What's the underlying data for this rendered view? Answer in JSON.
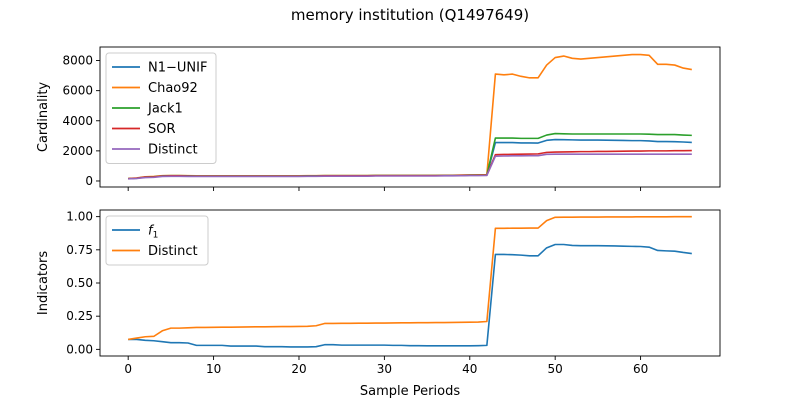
{
  "figure_title": "memory institution (Q1497649)",
  "chart_data": [
    {
      "type": "line",
      "title": "",
      "xlabel": "",
      "ylabel": "Cardinality",
      "xlim": [
        -3.3,
        69.3
      ],
      "ylim": [
        -400,
        8900
      ],
      "xticks": [
        0,
        10,
        20,
        30,
        40,
        50,
        60
      ],
      "yticks": [
        0,
        2000,
        4000,
        6000,
        8000
      ],
      "ytick_labels": [
        "0",
        "2000",
        "4000",
        "6000",
        "8000"
      ],
      "grid": false,
      "legend_position": "upper left",
      "x": [
        0,
        1,
        2,
        3,
        4,
        5,
        6,
        7,
        8,
        9,
        10,
        11,
        12,
        13,
        14,
        15,
        16,
        17,
        18,
        19,
        20,
        21,
        22,
        23,
        24,
        25,
        26,
        27,
        28,
        29,
        30,
        31,
        32,
        33,
        34,
        35,
        36,
        37,
        38,
        39,
        40,
        41,
        42,
        43,
        44,
        45,
        46,
        47,
        48,
        49,
        50,
        51,
        52,
        53,
        54,
        55,
        56,
        57,
        58,
        59,
        60,
        61,
        62,
        63,
        64,
        65,
        66
      ],
      "series": [
        {
          "name": "N1−UNIF",
          "color": "#1f77b4",
          "values": [
            150,
            180,
            250,
            260,
            330,
            340,
            340,
            330,
            320,
            320,
            320,
            320,
            320,
            320,
            320,
            320,
            320,
            320,
            320,
            320,
            320,
            330,
            330,
            340,
            340,
            340,
            340,
            340,
            340,
            350,
            350,
            350,
            350,
            350,
            350,
            350,
            350,
            360,
            360,
            370,
            380,
            380,
            380,
            2550,
            2550,
            2550,
            2530,
            2530,
            2520,
            2700,
            2750,
            2740,
            2730,
            2720,
            2720,
            2720,
            2710,
            2700,
            2690,
            2680,
            2680,
            2660,
            2620,
            2620,
            2610,
            2590,
            2560
          ]
        },
        {
          "name": "Chao92",
          "color": "#ff7f0e",
          "values": [
            160,
            200,
            280,
            300,
            350,
            360,
            360,
            350,
            340,
            340,
            340,
            340,
            340,
            340,
            340,
            340,
            340,
            340,
            340,
            340,
            340,
            350,
            350,
            360,
            360,
            360,
            360,
            360,
            360,
            370,
            370,
            370,
            370,
            370,
            370,
            370,
            370,
            380,
            380,
            390,
            400,
            410,
            420,
            7100,
            7050,
            7100,
            6950,
            6850,
            6850,
            7700,
            8200,
            8300,
            8150,
            8100,
            8150,
            8200,
            8250,
            8300,
            8350,
            8400,
            8400,
            8350,
            7750,
            7750,
            7700,
            7500,
            7400
          ]
        },
        {
          "name": "Jack1",
          "color": "#2ca02c",
          "values": [
            150,
            190,
            260,
            280,
            340,
            350,
            350,
            340,
            330,
            330,
            330,
            330,
            330,
            330,
            330,
            330,
            330,
            330,
            330,
            330,
            330,
            340,
            340,
            350,
            350,
            350,
            350,
            350,
            350,
            360,
            360,
            360,
            360,
            360,
            360,
            360,
            360,
            370,
            370,
            380,
            390,
            390,
            400,
            2850,
            2850,
            2850,
            2830,
            2830,
            2830,
            3050,
            3150,
            3130,
            3120,
            3120,
            3120,
            3120,
            3120,
            3120,
            3120,
            3120,
            3120,
            3110,
            3080,
            3080,
            3080,
            3050,
            3030
          ]
        },
        {
          "name": "SOR",
          "color": "#d62728",
          "values": [
            150,
            190,
            260,
            270,
            330,
            340,
            340,
            330,
            320,
            320,
            320,
            320,
            320,
            320,
            320,
            320,
            320,
            320,
            320,
            320,
            320,
            330,
            330,
            340,
            340,
            340,
            340,
            340,
            340,
            350,
            350,
            350,
            350,
            350,
            350,
            350,
            350,
            360,
            360,
            370,
            380,
            380,
            390,
            1750,
            1760,
            1770,
            1780,
            1790,
            1800,
            1900,
            1920,
            1930,
            1940,
            1950,
            1950,
            1960,
            1960,
            1970,
            1980,
            1990,
            1990,
            2000,
            2000,
            2000,
            2010,
            2010,
            2020
          ]
        },
        {
          "name": "Distinct",
          "color": "#9467bd",
          "values": [
            140,
            170,
            230,
            240,
            300,
            310,
            310,
            300,
            300,
            300,
            300,
            300,
            300,
            300,
            300,
            300,
            300,
            300,
            300,
            300,
            300,
            310,
            310,
            320,
            320,
            320,
            320,
            320,
            320,
            330,
            330,
            330,
            330,
            330,
            330,
            330,
            330,
            340,
            340,
            350,
            360,
            360,
            370,
            1650,
            1660,
            1670,
            1670,
            1680,
            1680,
            1770,
            1780,
            1780,
            1780,
            1780,
            1780,
            1780,
            1780,
            1780,
            1780,
            1780,
            1780,
            1780,
            1780,
            1780,
            1780,
            1780,
            1780
          ]
        }
      ]
    },
    {
      "type": "line",
      "title": "",
      "xlabel": "Sample Periods",
      "ylabel": "Indicators",
      "xlim": [
        -3.3,
        69.3
      ],
      "ylim": [
        -0.05,
        1.05
      ],
      "xticks": [
        0,
        10,
        20,
        30,
        40,
        50,
        60
      ],
      "yticks": [
        0,
        0.25,
        0.5,
        0.75,
        1.0
      ],
      "ytick_labels": [
        "0.00",
        "0.25",
        "0.50",
        "0.75",
        "1.00"
      ],
      "grid": false,
      "legend_position": "upper left",
      "x": [
        0,
        1,
        2,
        3,
        4,
        5,
        6,
        7,
        8,
        9,
        10,
        11,
        12,
        13,
        14,
        15,
        16,
        17,
        18,
        19,
        20,
        21,
        22,
        23,
        24,
        25,
        26,
        27,
        28,
        29,
        30,
        31,
        32,
        33,
        34,
        35,
        36,
        37,
        38,
        39,
        40,
        41,
        42,
        43,
        44,
        45,
        46,
        47,
        48,
        49,
        50,
        51,
        52,
        53,
        54,
        55,
        56,
        57,
        58,
        59,
        60,
        61,
        62,
        63,
        64,
        65,
        66
      ],
      "series": [
        {
          "name": "f1",
          "label_main": "f",
          "label_sub": "1",
          "color": "#1f77b4",
          "values": [
            0.075,
            0.075,
            0.068,
            0.065,
            0.058,
            0.05,
            0.05,
            0.048,
            0.03,
            0.03,
            0.03,
            0.03,
            0.025,
            0.025,
            0.025,
            0.025,
            0.02,
            0.02,
            0.02,
            0.018,
            0.018,
            0.018,
            0.02,
            0.035,
            0.035,
            0.032,
            0.032,
            0.032,
            0.032,
            0.032,
            0.032,
            0.03,
            0.03,
            0.028,
            0.028,
            0.027,
            0.027,
            0.027,
            0.027,
            0.027,
            0.027,
            0.028,
            0.03,
            0.715,
            0.715,
            0.713,
            0.71,
            0.705,
            0.705,
            0.765,
            0.79,
            0.79,
            0.783,
            0.781,
            0.781,
            0.781,
            0.78,
            0.779,
            0.777,
            0.776,
            0.775,
            0.77,
            0.745,
            0.742,
            0.74,
            0.73,
            0.722
          ]
        },
        {
          "name": "Distinct",
          "color": "#ff7f0e",
          "values": [
            0.075,
            0.085,
            0.095,
            0.098,
            0.14,
            0.16,
            0.16,
            0.162,
            0.165,
            0.165,
            0.166,
            0.167,
            0.167,
            0.168,
            0.169,
            0.17,
            0.17,
            0.171,
            0.172,
            0.172,
            0.173,
            0.174,
            0.178,
            0.195,
            0.195,
            0.196,
            0.196,
            0.197,
            0.197,
            0.198,
            0.198,
            0.199,
            0.2,
            0.2,
            0.201,
            0.201,
            0.202,
            0.202,
            0.203,
            0.204,
            0.205,
            0.206,
            0.21,
            0.912,
            0.912,
            0.913,
            0.913,
            0.914,
            0.914,
            0.97,
            0.995,
            0.996,
            0.996,
            0.997,
            0.997,
            0.997,
            0.998,
            0.998,
            0.998,
            0.998,
            0.999,
            0.999,
            0.999,
            0.999,
            1.0,
            1.0,
            1.0
          ]
        }
      ]
    }
  ]
}
